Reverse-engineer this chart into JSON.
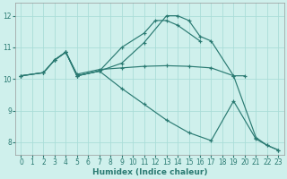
{
  "xlabel": "Humidex (Indice chaleur)",
  "bg_color": "#cff0ec",
  "grid_color": "#aaddd8",
  "line_color": "#2a7a72",
  "xlim": [
    -0.5,
    23.5
  ],
  "ylim": [
    7.6,
    12.4
  ],
  "xticks": [
    0,
    1,
    2,
    3,
    4,
    5,
    6,
    7,
    8,
    9,
    10,
    11,
    12,
    13,
    14,
    15,
    16,
    17,
    18,
    19,
    20,
    21,
    22,
    23
  ],
  "yticks": [
    8,
    9,
    10,
    11,
    12
  ],
  "lines": [
    {
      "x": [
        0,
        2,
        3,
        4,
        5,
        7,
        9,
        11,
        12,
        13,
        14,
        16
      ],
      "y": [
        10.1,
        10.2,
        10.6,
        10.85,
        10.1,
        10.25,
        11.0,
        11.45,
        11.85,
        11.85,
        11.7,
        11.2
      ]
    },
    {
      "x": [
        0,
        2,
        3,
        4,
        5,
        7,
        9,
        11,
        13,
        15,
        17,
        19,
        20
      ],
      "y": [
        10.1,
        10.2,
        10.6,
        10.85,
        10.15,
        10.3,
        10.35,
        10.4,
        10.42,
        10.4,
        10.35,
        10.1,
        10.1
      ]
    },
    {
      "x": [
        0,
        2,
        3,
        4,
        5,
        7,
        9,
        11,
        13,
        15,
        17,
        19,
        21,
        22,
        23
      ],
      "y": [
        10.1,
        10.2,
        10.6,
        10.85,
        10.1,
        10.25,
        9.7,
        9.2,
        8.7,
        8.3,
        8.05,
        9.3,
        8.1,
        7.9,
        7.75
      ]
    },
    {
      "x": [
        3,
        4,
        5,
        7,
        9,
        11,
        13,
        14,
        15,
        16,
        17,
        19,
        21,
        22,
        23
      ],
      "y": [
        10.6,
        10.85,
        10.1,
        10.25,
        10.5,
        11.15,
        12.0,
        12.0,
        11.85,
        11.35,
        11.2,
        10.1,
        8.15,
        7.9,
        7.75
      ]
    }
  ]
}
